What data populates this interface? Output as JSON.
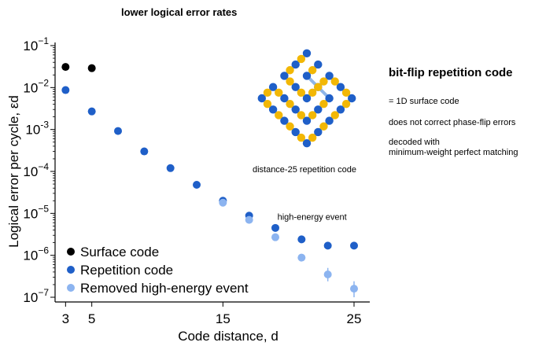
{
  "header": {
    "title": "lower logical error rates"
  },
  "side_panel": {
    "title": "bit-flip repetition code",
    "notes": [
      "= 1D surface code",
      "does not correct phase-flip errors",
      "decoded with\nminimum-weight perfect matching"
    ]
  },
  "inset": {
    "caption": "distance-25 repetition code",
    "colors": {
      "data_qubit": "#1f5fc8",
      "measure_qubit": "#f2b705",
      "edge": "#8fb5e8"
    }
  },
  "chart_data": {
    "type": "scatter",
    "xlabel": "Code distance, d",
    "ylabel": "Logical error per cycle, εd",
    "x_ticks": [
      3,
      5,
      15,
      25
    ],
    "xlim": [
      2.2,
      26.2
    ],
    "y_scale": "log",
    "ylim": [
      1e-07,
      0.1
    ],
    "y_tick_labels": [
      {
        "value": 0.1,
        "base": "10",
        "exp": "−1"
      },
      {
        "value": 0.01,
        "base": "10",
        "exp": "−2"
      },
      {
        "value": 0.001,
        "base": "10",
        "exp": "-3"
      },
      {
        "value": 0.0001,
        "base": "10",
        "exp": "−4"
      },
      {
        "value": 1e-05,
        "base": "10",
        "exp": "−5"
      },
      {
        "value": 1e-06,
        "base": "10",
        "exp": "−6"
      },
      {
        "value": 1e-07,
        "base": "10",
        "exp": "−7"
      }
    ],
    "legend_position": "bottom-left",
    "series": [
      {
        "name": "Surface code",
        "color": "#000000",
        "points": [
          [
            3,
            0.031
          ],
          [
            5,
            0.029
          ]
        ]
      },
      {
        "name": "Repetition code",
        "color": "#1f5fc8",
        "points": [
          [
            3,
            0.0087
          ],
          [
            5,
            0.0027
          ],
          [
            7,
            0.00092
          ],
          [
            9,
            0.0003
          ],
          [
            11,
            0.00012
          ],
          [
            13,
            4.8e-05
          ],
          [
            15,
            2e-05
          ],
          [
            17,
            8.8e-06
          ],
          [
            19,
            4.5e-06
          ],
          [
            21,
            2.4e-06
          ],
          [
            23,
            1.7e-06
          ],
          [
            25,
            1.7e-06
          ]
        ]
      },
      {
        "name": "Removed high-energy event",
        "color": "#8cb4f0",
        "points": [
          [
            15,
            1.8e-05
          ],
          [
            17,
            7e-06
          ],
          [
            19,
            2.7e-06
          ],
          [
            21,
            8.8e-07
          ],
          [
            23,
            3.5e-07
          ],
          [
            25,
            1.6e-07
          ]
        ],
        "error_bars": [
          null,
          null,
          null,
          [
            7.5e-07,
            1e-06
          ],
          [
            2.4e-07,
            5e-07
          ],
          [
            1e-07,
            2.4e-07
          ]
        ]
      }
    ],
    "annotations": [
      {
        "text": "high-energy event",
        "x": 23,
        "y": 4e-06
      }
    ]
  }
}
